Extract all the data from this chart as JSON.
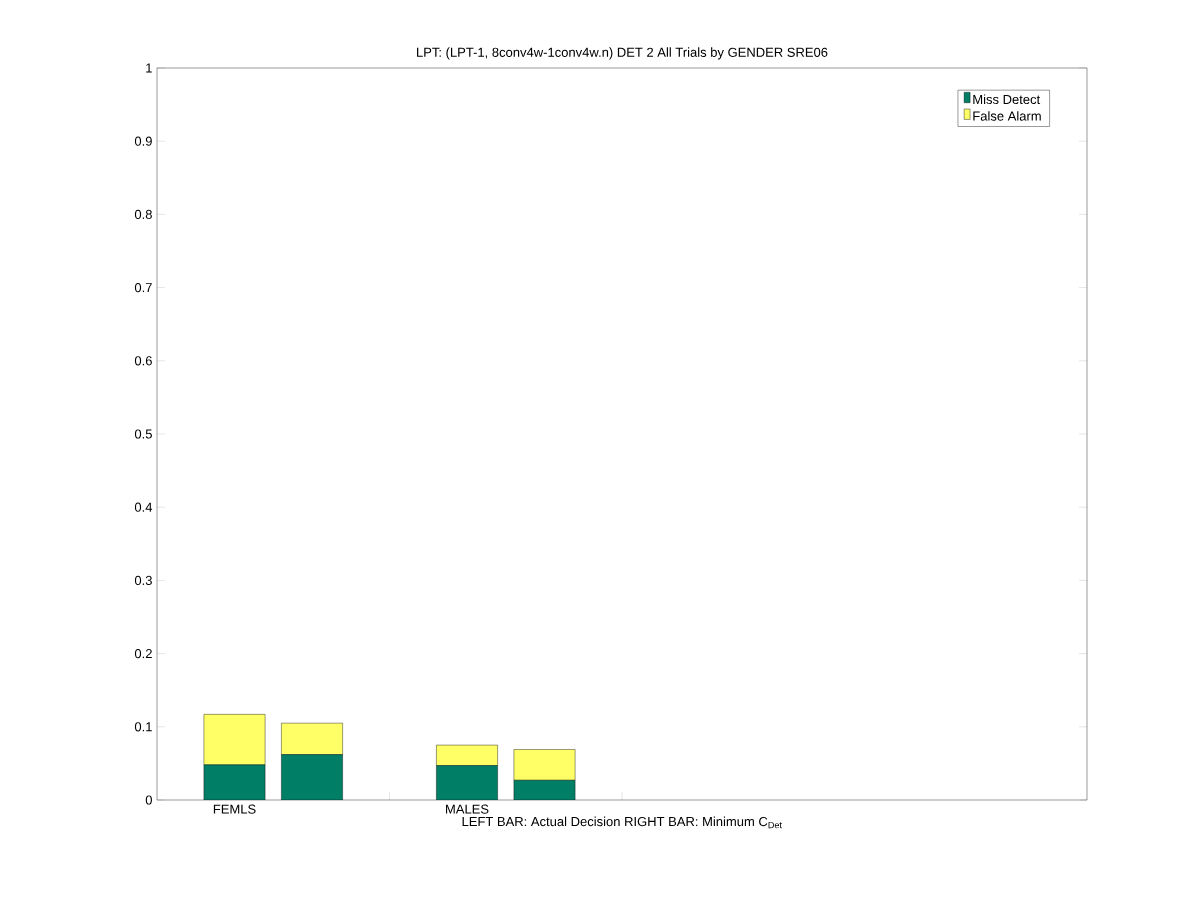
{
  "chart_data": {
    "type": "bar",
    "title": "LPT: (LPT-1, 8conv4w-1conv4w.n) DET 2 All Trials by GENDER SRE06",
    "xlabel": "LEFT BAR: Actual Decision     RIGHT BAR: Minimum C$_{Det}$",
    "categories": [
      "FEMLS",
      null,
      null,
      "MALES",
      null,
      null,
      null,
      null,
      null,
      null,
      null
    ],
    "stacked": true,
    "series": [
      {
        "name": "Miss Detect",
        "color": "#007f66",
        "values": [
          0.048,
          0.062,
          null,
          0.047,
          0.027,
          null,
          null,
          null,
          null,
          null,
          null
        ]
      },
      {
        "name": "False Alarm",
        "color": "#ffff66",
        "values": [
          0.069,
          0.043,
          null,
          0.028,
          0.042,
          null,
          null,
          null,
          null,
          null,
          null
        ]
      }
    ],
    "ylim": [
      0,
      1
    ],
    "yticks": [
      0,
      0.1,
      0.2,
      0.3,
      0.4,
      0.5,
      0.6,
      0.7,
      0.8,
      0.9,
      1
    ],
    "legend": "top right",
    "grid": false
  }
}
